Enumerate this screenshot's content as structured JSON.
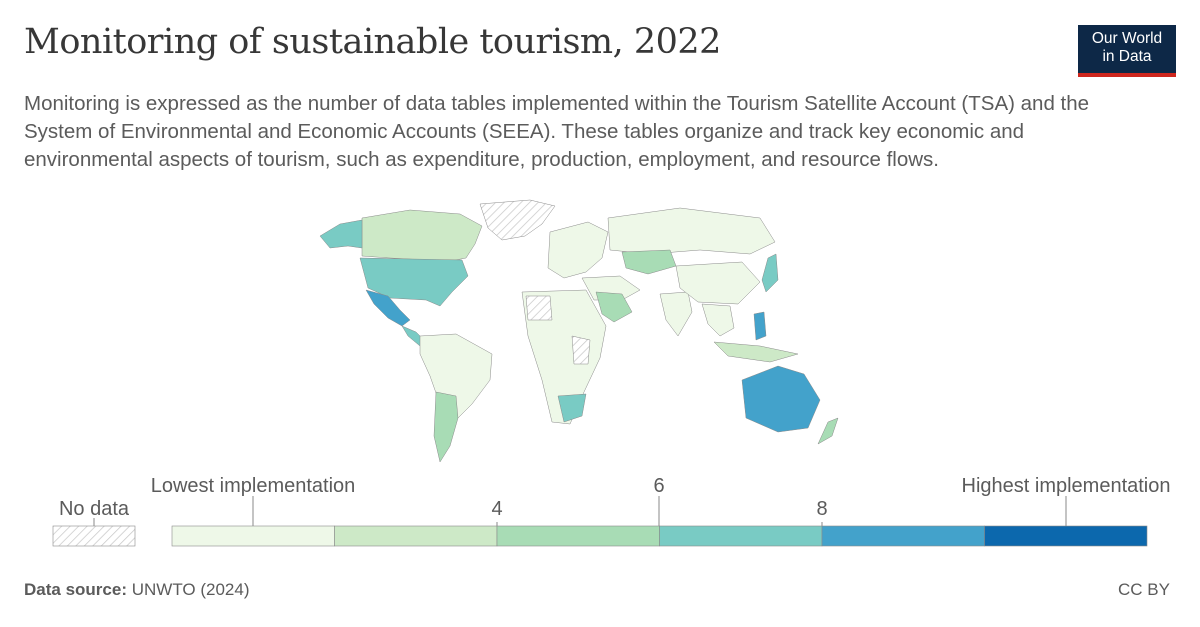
{
  "title": "Monitoring of sustainable tourism, 2022",
  "subtitle": "Monitoring is expressed as the number of data tables implemented within the Tourism Satellite Account (TSA) and the System of Environmental and Economic Accounts (SEEA). These tables organize and track key economic and environmental aspects of tourism, such as expenditure, production, employment, and resource flows.",
  "logo": {
    "line1": "Our World",
    "line2": "in Data"
  },
  "legend": {
    "no_data": "No data",
    "low_label": "Lowest implementation",
    "high_label": "Highest implementation",
    "ticks": [
      "4",
      "6",
      "8"
    ],
    "bins": [
      "#eef8e8",
      "#cde9c7",
      "#a8dcb5",
      "#79cbc4",
      "#43a2cb",
      "#0c68ad"
    ]
  },
  "footer": {
    "source_label": "Data source:",
    "source_value": "UNWTO (2024)",
    "license": "CC BY"
  },
  "chart_data": {
    "type": "choropleth",
    "year": "2022",
    "no_data_pattern": "hatched",
    "regions": [
      {
        "name": "North America (Canada)",
        "bin": 2
      },
      {
        "name": "United States",
        "bin": 3
      },
      {
        "name": "Mexico",
        "bin": 4
      },
      {
        "name": "Central America",
        "bin": 3
      },
      {
        "name": "South America",
        "bin": 0
      },
      {
        "name": "Argentina",
        "bin": 1
      },
      {
        "name": "Greenland",
        "bin": -1
      },
      {
        "name": "Europe",
        "bin": 0
      },
      {
        "name": "Russia",
        "bin": 0
      },
      {
        "name": "Kazakhstan",
        "bin": 2
      },
      {
        "name": "Middle East",
        "bin": 0
      },
      {
        "name": "Saudi Arabia",
        "bin": 2
      },
      {
        "name": "Africa",
        "bin": 0
      },
      {
        "name": "South Africa",
        "bin": 3
      },
      {
        "name": "India",
        "bin": 0
      },
      {
        "name": "China",
        "bin": 0
      },
      {
        "name": "Japan",
        "bin": 3
      },
      {
        "name": "Philippines",
        "bin": 4
      },
      {
        "name": "Indonesia",
        "bin": 1
      },
      {
        "name": "Australia",
        "bin": 4
      },
      {
        "name": "New Zealand",
        "bin": 2
      }
    ]
  }
}
